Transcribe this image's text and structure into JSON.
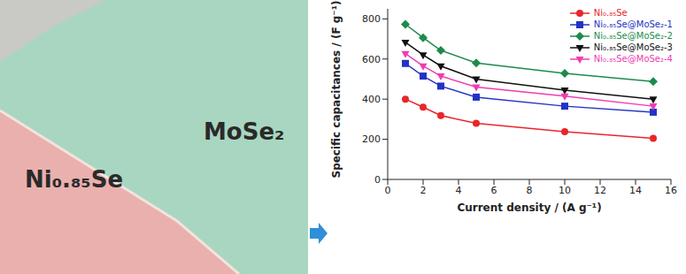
{
  "chart_data": {
    "type": "line",
    "annotations": [
      "MoSe₂",
      "Ni₀.₈₅Se"
    ],
    "x_label": "Current density / (A g⁻¹)",
    "y_label": "Specific capacitances / (F g⁻¹)",
    "x": [
      1,
      2,
      3,
      5,
      10,
      15
    ],
    "series": [
      {
        "name": "Ni₀.₈₅Se",
        "color": "#e8262b",
        "marker": "circle",
        "values": [
          400,
          360,
          318,
          280,
          238,
          205
        ]
      },
      {
        "name": "Ni₀.₈₅Se@MoSe₂-1",
        "color": "#2233c4",
        "marker": "square",
        "values": [
          578,
          515,
          465,
          410,
          365,
          335
        ]
      },
      {
        "name": "Ni₀.₈₅Se@MoSe₂-2",
        "color": "#1e8a4c",
        "marker": "diamond",
        "values": [
          773,
          706,
          643,
          580,
          528,
          488
        ]
      },
      {
        "name": "Ni₀.₈₅Se@MoSe₂-3",
        "color": "#111111",
        "marker": "triangle-down",
        "values": [
          683,
          620,
          565,
          500,
          445,
          400
        ]
      },
      {
        "name": "Ni₀.₈₅Se@MoSe₂-4",
        "color": "#f03cb0",
        "marker": "triangle-down",
        "values": [
          627,
          565,
          515,
          460,
          415,
          365
        ]
      }
    ],
    "xlim": [
      0,
      16
    ],
    "xticks": [
      0,
      2,
      4,
      6,
      8,
      10,
      12,
      14,
      16
    ],
    "ylim": [
      0,
      850
    ],
    "yticks": [
      0,
      200,
      400,
      600,
      800
    ],
    "legend": "top-right",
    "grid": false
  }
}
